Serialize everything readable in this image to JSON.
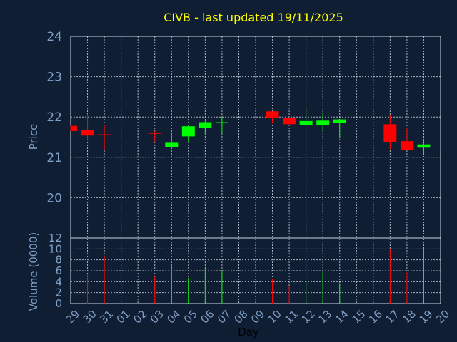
{
  "chart_data": [
    {
      "type": "candlestick",
      "title": "CIVB - last updated 19/11/2025",
      "ylabel": "Price",
      "ylim": [
        19.0,
        24.0
      ],
      "yticks": [
        20,
        21,
        22,
        23,
        24
      ],
      "categories": [
        "29",
        "30",
        "31",
        "01",
        "02",
        "03",
        "04",
        "05",
        "06",
        "07",
        "08",
        "09",
        "10",
        "11",
        "12",
        "13",
        "14",
        "15",
        "16",
        "17",
        "18",
        "19",
        "20"
      ],
      "candles": [
        {
          "x": "29",
          "open": 21.78,
          "close": 21.65,
          "high": 21.78,
          "low": 21.65
        },
        {
          "x": "30",
          "open": 21.67,
          "close": 21.54,
          "high": 22.07,
          "low": 21.41
        },
        {
          "x": "31",
          "open": 21.57,
          "close": 21.55,
          "high": 21.79,
          "low": 21.18
        },
        {
          "x": "03",
          "open": 21.61,
          "close": 21.59,
          "high": 21.65,
          "low": 21.38
        },
        {
          "x": "04",
          "open": 21.26,
          "close": 21.36,
          "high": 21.62,
          "low": 21.21
        },
        {
          "x": "05",
          "open": 21.52,
          "close": 21.77,
          "high": 21.8,
          "low": 21.39
        },
        {
          "x": "06",
          "open": 21.73,
          "close": 21.87,
          "high": 21.92,
          "low": 21.57
        },
        {
          "x": "07",
          "open": 21.85,
          "close": 21.87,
          "high": 22.0,
          "low": 21.6
        },
        {
          "x": "10",
          "open": 22.14,
          "close": 21.98,
          "high": 22.14,
          "low": 21.84
        },
        {
          "x": "11",
          "open": 21.98,
          "close": 21.82,
          "high": 22.0,
          "low": 21.82
        },
        {
          "x": "12",
          "open": 21.8,
          "close": 21.9,
          "high": 22.2,
          "low": 21.78
        },
        {
          "x": "13",
          "open": 21.8,
          "close": 21.91,
          "high": 22.12,
          "low": 21.67
        },
        {
          "x": "14",
          "open": 21.85,
          "close": 21.94,
          "high": 21.95,
          "low": 21.48
        },
        {
          "x": "17",
          "open": 21.82,
          "close": 21.37,
          "high": 22.05,
          "low": 21.2
        },
        {
          "x": "18",
          "open": 21.4,
          "close": 21.19,
          "high": 21.74,
          "low": 21.19
        },
        {
          "x": "19",
          "open": 21.24,
          "close": 21.32,
          "high": 21.45,
          "low": 21.09
        }
      ]
    },
    {
      "type": "bar",
      "ylabel": "Volume (0000)",
      "xlabel": "Day",
      "ylim": [
        0,
        12
      ],
      "yticks": [
        0,
        2,
        4,
        6,
        8,
        10,
        12
      ],
      "categories": [
        "29",
        "30",
        "31",
        "01",
        "02",
        "03",
        "04",
        "05",
        "06",
        "07",
        "08",
        "09",
        "10",
        "11",
        "12",
        "13",
        "14",
        "15",
        "16",
        "17",
        "18",
        "19",
        "20"
      ],
      "bars": [
        {
          "x": "30",
          "value": 5.3,
          "direction": "down"
        },
        {
          "x": "31",
          "value": 8.8,
          "direction": "down"
        },
        {
          "x": "03",
          "value": 4.9,
          "direction": "down"
        },
        {
          "x": "04",
          "value": 6.9,
          "direction": "up"
        },
        {
          "x": "05",
          "value": 4.7,
          "direction": "up"
        },
        {
          "x": "06",
          "value": 6.5,
          "direction": "up"
        },
        {
          "x": "07",
          "value": 6.0,
          "direction": "up"
        },
        {
          "x": "10",
          "value": 4.5,
          "direction": "down"
        },
        {
          "x": "11",
          "value": 3.3,
          "direction": "down"
        },
        {
          "x": "12",
          "value": 4.2,
          "direction": "up"
        },
        {
          "x": "13",
          "value": 6.0,
          "direction": "up"
        },
        {
          "x": "14",
          "value": 3.7,
          "direction": "up"
        },
        {
          "x": "17",
          "value": 10.0,
          "direction": "down"
        },
        {
          "x": "18",
          "value": 5.7,
          "direction": "down"
        },
        {
          "x": "19",
          "value": 10.1,
          "direction": "up"
        }
      ]
    }
  ],
  "colors": {
    "background": "#0f1e33",
    "up": "#00ff00",
    "down": "#ff0000",
    "title": "#ffff00",
    "tick": "#7f9fc6",
    "grid": "#cfd8e6"
  }
}
